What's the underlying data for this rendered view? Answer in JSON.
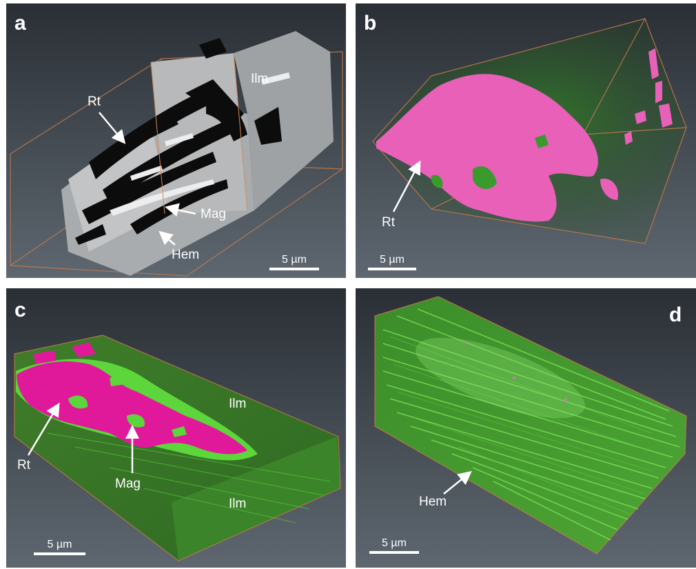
{
  "panels": {
    "a": {
      "letter": "a",
      "labels": {
        "rt": "Rt",
        "ilm": "Ilm",
        "mag": "Mag",
        "hem": "Hem"
      },
      "scale": "5 µm"
    },
    "b": {
      "letter": "b",
      "labels": {
        "rt": "Rt"
      },
      "scale": "5 µm"
    },
    "c": {
      "letter": "c",
      "labels": {
        "rt": "Rt",
        "mag": "Mag",
        "ilm_top": "Ilm",
        "ilm_bottom": "Ilm"
      },
      "scale": "5 µm"
    },
    "d": {
      "letter": "d",
      "labels": {
        "hem": "Hem"
      },
      "scale": "5 µm"
    }
  },
  "colors": {
    "background_dark": "#2d3238",
    "background_light": "#59616b",
    "box_edge": "#c07a4a",
    "rutile": "#e860b8",
    "ilmenite": "#2f7a24",
    "magnetite": "#5cd63a"
  }
}
